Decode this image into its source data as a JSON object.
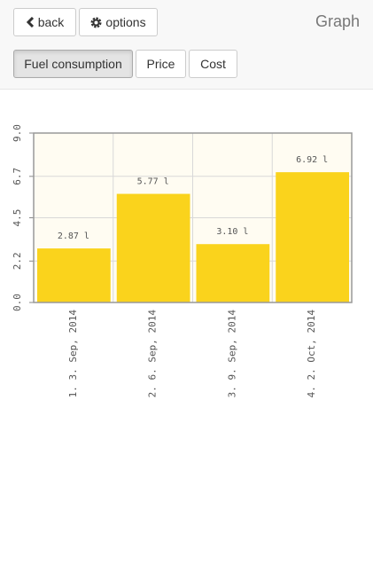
{
  "header": {
    "back": "back",
    "options": "options",
    "title": "Graph"
  },
  "tabs": [
    "Fuel consumption",
    "Price",
    "Cost"
  ],
  "chart_data": {
    "type": "bar",
    "categories": [
      "1. 3. Sep, 2014",
      "2. 6. Sep, 2014",
      "3. 9. Sep, 2014",
      "4. 2. Oct, 2014"
    ],
    "values": [
      2.87,
      5.77,
      3.1,
      6.92
    ],
    "value_labels": [
      "2.87 l",
      "5.77 l",
      "3.10 l",
      "6.92 l"
    ],
    "color": "#fad31c",
    "ylim": [
      0,
      9
    ],
    "yticks": [
      {
        "value": 0,
        "label": "0.0"
      },
      2.2,
      4.5,
      6.7,
      {
        "value": 9,
        "label": "9.0"
      }
    ],
    "grid": true
  }
}
